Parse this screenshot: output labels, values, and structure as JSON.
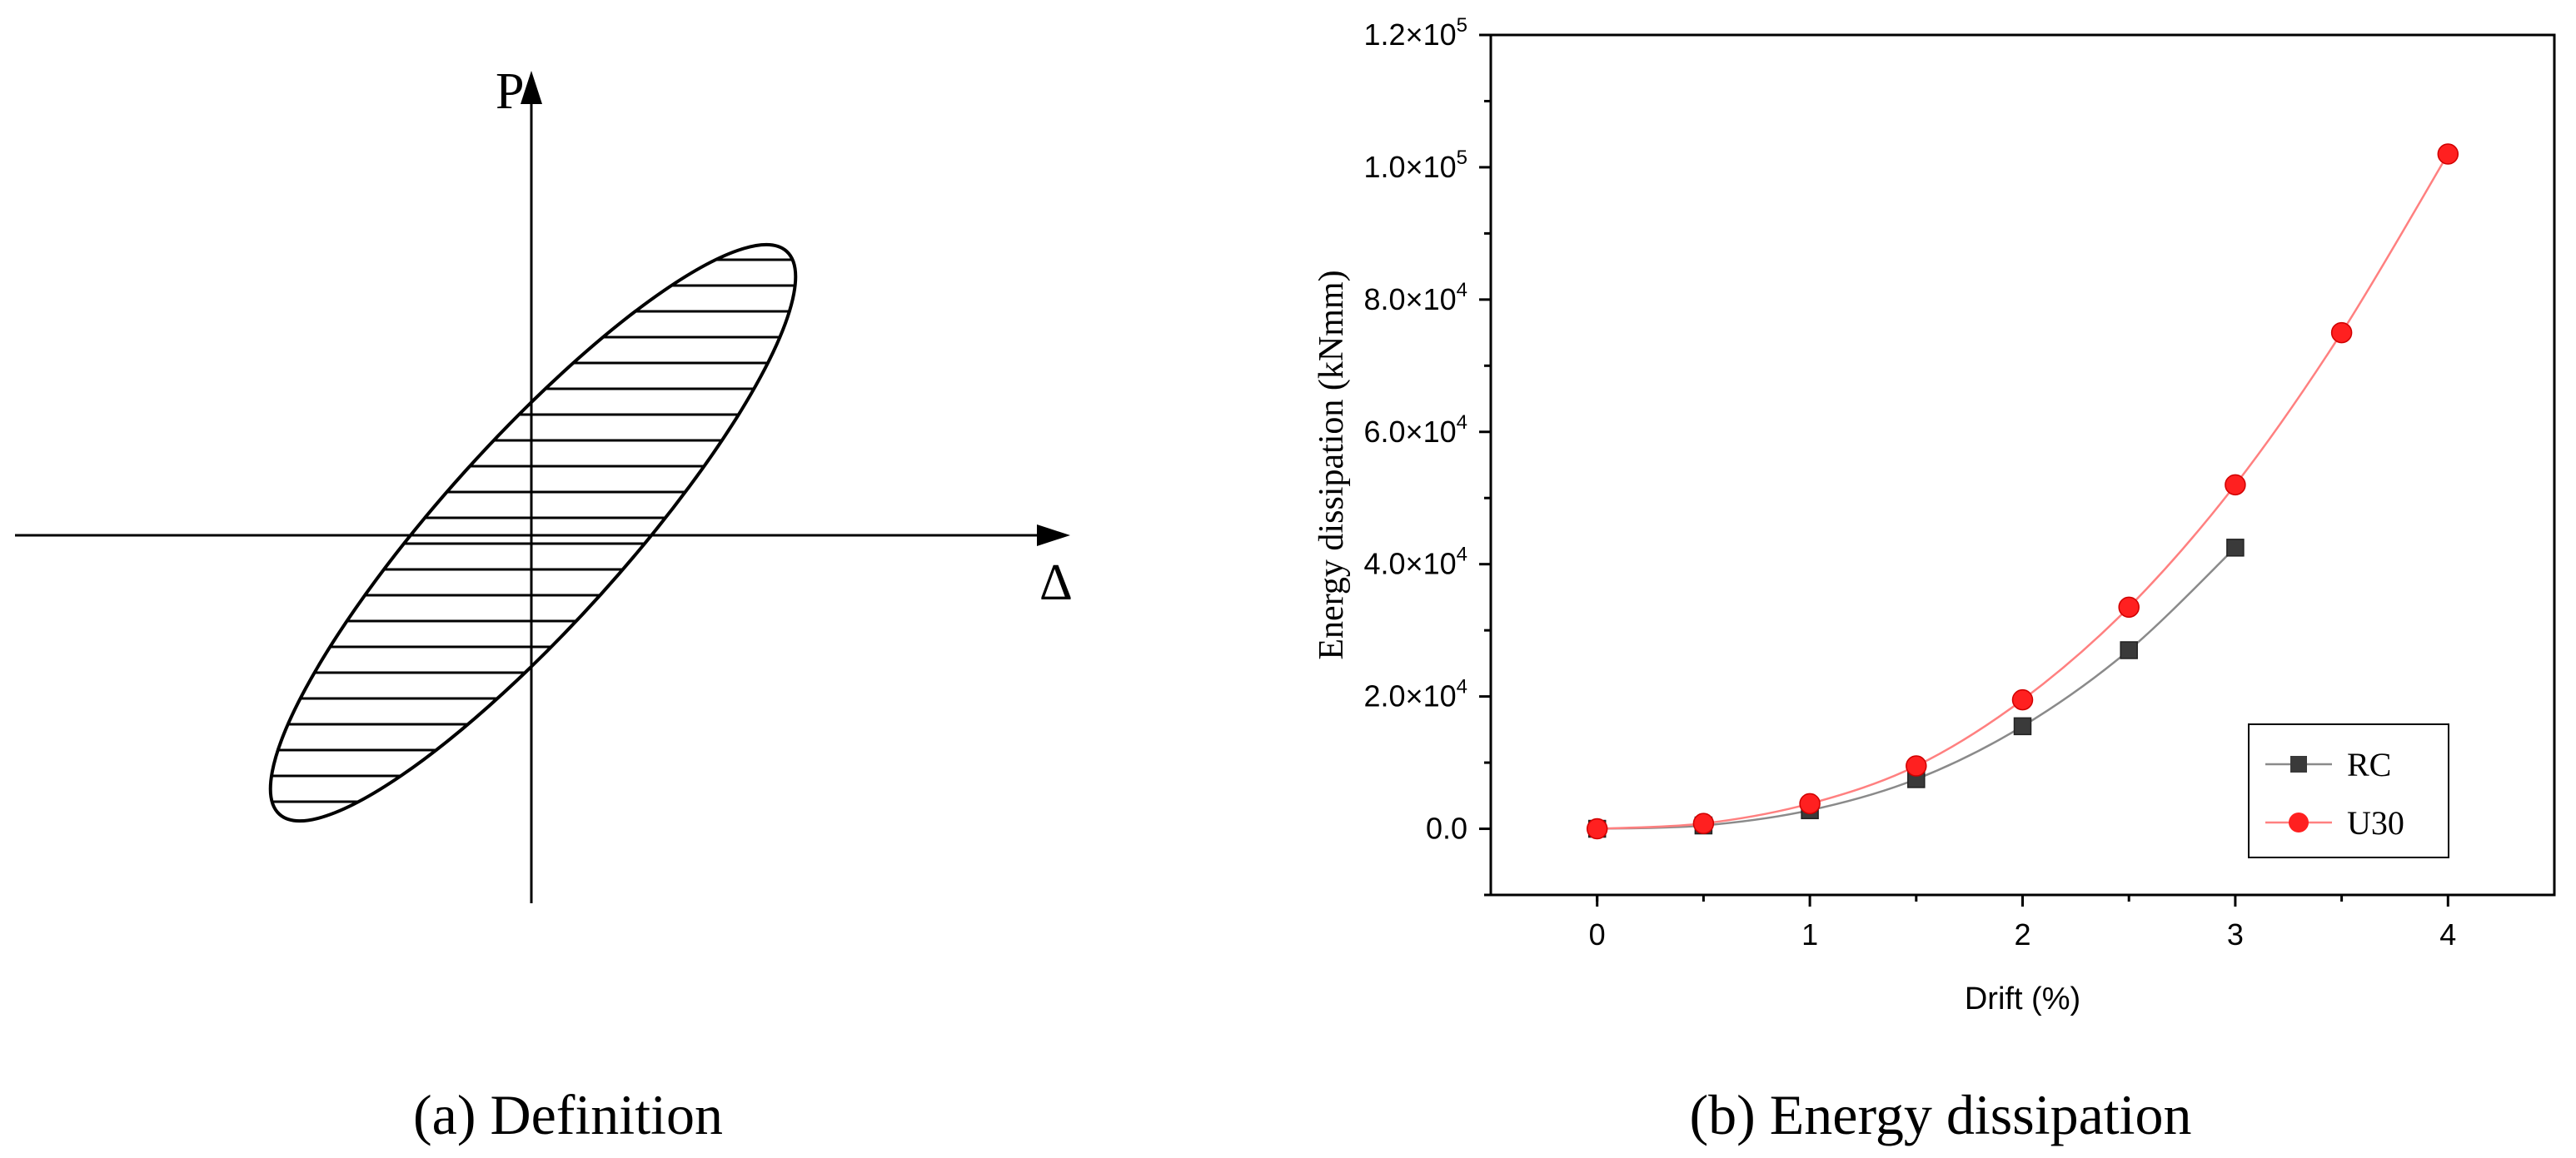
{
  "panel_a": {
    "caption": "(a) Definition",
    "y_axis_label": "P",
    "x_axis_label": "Δ"
  },
  "panel_b": {
    "caption": "(b) Energy dissipation"
  },
  "chart_data": {
    "type": "line",
    "xlabel": "Drift (%)",
    "ylabel": "Energy dissipation (kNmm)",
    "xlim": [
      -0.5,
      4.5
    ],
    "ylim": [
      -10000,
      120000
    ],
    "xticks": [
      0,
      1,
      2,
      3,
      4
    ],
    "xtick_labels": [
      "0",
      "1",
      "2",
      "3",
      "4"
    ],
    "yticks": [
      0,
      20000,
      40000,
      60000,
      80000,
      100000,
      120000
    ],
    "ytick_labels": [
      {
        "m": "0.0",
        "e": ""
      },
      {
        "m": "2.0×10",
        "e": "4"
      },
      {
        "m": "4.0×10",
        "e": "4"
      },
      {
        "m": "6.0×10",
        "e": "4"
      },
      {
        "m": "8.0×10",
        "e": "4"
      },
      {
        "m": "1.0×10",
        "e": "5"
      },
      {
        "m": "1.2×10",
        "e": "5"
      }
    ],
    "legend_position": "bottom-right",
    "series": [
      {
        "name": "RC",
        "marker": "square",
        "color": "#3a3a3a",
        "line_color": "#8a8a8a",
        "x": [
          0,
          0.5,
          1,
          1.5,
          2,
          2.5,
          3
        ],
        "y": [
          0,
          500,
          2800,
          7500,
          15500,
          27000,
          42500
        ]
      },
      {
        "name": "U30",
        "marker": "circle",
        "color": "#ff2020",
        "line_color": "#ff8080",
        "x": [
          0,
          0.5,
          1,
          1.5,
          2,
          2.5,
          3,
          3.5,
          4
        ],
        "y": [
          0,
          800,
          3800,
          9500,
          19500,
          33500,
          52000,
          75000,
          102000
        ]
      }
    ]
  }
}
